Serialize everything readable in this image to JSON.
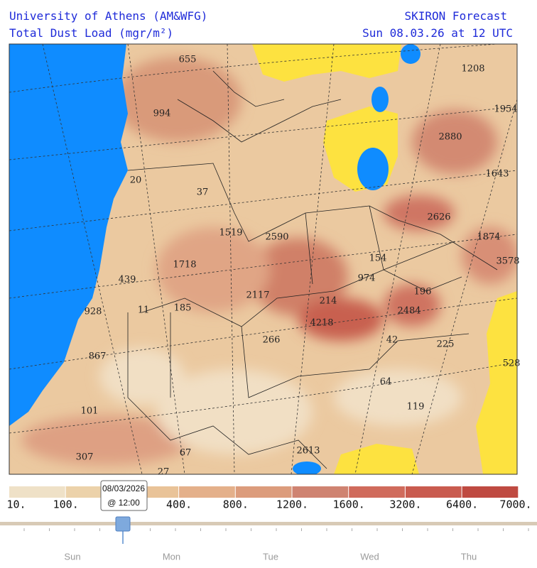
{
  "header": {
    "institution": "University of Athens (AM&WFG)",
    "product": "Total Dust Load (mgr/m²)",
    "model": "SKIRON Forecast",
    "valid_time": "Sun 08.03.26 at 12 UTC"
  },
  "map": {
    "labels": [
      655,
      994,
      20,
      37,
      1519,
      2590,
      1718,
      439,
      928,
      11,
      185,
      2117,
      214,
      4218,
      266,
      867,
      101,
      307,
      67,
      27,
      2613,
      64,
      119,
      42,
      225,
      528,
      2484,
      196,
      974,
      154,
      3578,
      1874,
      2626,
      1643,
      2880,
      1954,
      1208
    ]
  },
  "legend": {
    "labels": [
      "10.",
      "100.",
      "400.",
      "800.",
      "1200.",
      "1600.",
      "3200.",
      "6400.",
      "7000."
    ]
  },
  "timeline": {
    "tooltip": {
      "date": "08/03/2026",
      "time": "@ 12:00"
    },
    "days": [
      "Sun",
      "Mon",
      "Tue",
      "Wed",
      "Thu"
    ]
  }
}
